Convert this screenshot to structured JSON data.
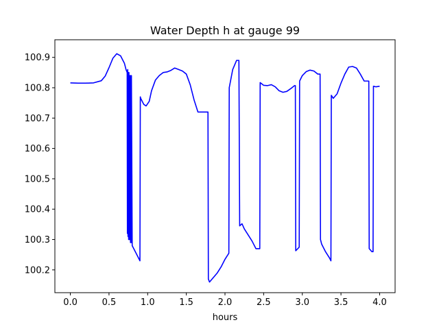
{
  "chart_data": {
    "type": "line",
    "title": "Water Depth h at gauge 99",
    "xlabel": "hours",
    "ylabel": "",
    "xlim": [
      -0.2,
      4.2
    ],
    "ylim": [
      100.125,
      100.958
    ],
    "grid": false,
    "x_ticks": [
      {
        "value": 0.0,
        "label": "0.0"
      },
      {
        "value": 0.5,
        "label": "0.5"
      },
      {
        "value": 1.0,
        "label": "1.0"
      },
      {
        "value": 1.5,
        "label": "1.5"
      },
      {
        "value": 2.0,
        "label": "2.0"
      },
      {
        "value": 2.5,
        "label": "2.5"
      },
      {
        "value": 3.0,
        "label": "3.0"
      },
      {
        "value": 3.5,
        "label": "3.5"
      },
      {
        "value": 4.0,
        "label": "4.0"
      }
    ],
    "y_ticks": [
      {
        "value": 100.2,
        "label": "100.2"
      },
      {
        "value": 100.3,
        "label": "100.3"
      },
      {
        "value": 100.4,
        "label": "100.4"
      },
      {
        "value": 100.5,
        "label": "100.5"
      },
      {
        "value": 100.6,
        "label": "100.6"
      },
      {
        "value": 100.7,
        "label": "100.7"
      },
      {
        "value": 100.8,
        "label": "100.8"
      },
      {
        "value": 100.9,
        "label": "100.9"
      }
    ],
    "series": [
      {
        "color": "#0000ff",
        "x": [
          0.0,
          0.1,
          0.2,
          0.3,
          0.4,
          0.45,
          0.5,
          0.55,
          0.6,
          0.65,
          0.7,
          0.72,
          0.735,
          0.738,
          0.742,
          0.746,
          0.75,
          0.754,
          0.758,
          0.762,
          0.766,
          0.77,
          0.774,
          0.778,
          0.782,
          0.786,
          0.79,
          0.8,
          0.85,
          0.9,
          0.905,
          0.91,
          0.95,
          0.98,
          1.02,
          1.05,
          1.1,
          1.15,
          1.2,
          1.25,
          1.3,
          1.35,
          1.4,
          1.45,
          1.5,
          1.55,
          1.6,
          1.65,
          1.7,
          1.75,
          1.78,
          1.785,
          1.8,
          1.85,
          1.9,
          1.95,
          2.0,
          2.05,
          2.055,
          2.1,
          2.15,
          2.18,
          2.19,
          2.22,
          2.25,
          2.3,
          2.35,
          2.4,
          2.45,
          2.455,
          2.5,
          2.55,
          2.6,
          2.65,
          2.7,
          2.75,
          2.8,
          2.85,
          2.9,
          2.91,
          2.915,
          2.96,
          2.965,
          3.0,
          3.05,
          3.1,
          3.15,
          3.2,
          3.23,
          3.235,
          3.25,
          3.3,
          3.35,
          3.37,
          3.375,
          3.4,
          3.45,
          3.5,
          3.55,
          3.6,
          3.65,
          3.7,
          3.75,
          3.8,
          3.85,
          3.86,
          3.865,
          3.9,
          3.915,
          3.92,
          3.95,
          4.0
        ],
        "y": [
          100.816,
          100.815,
          100.815,
          100.816,
          100.823,
          100.838,
          100.866,
          100.897,
          100.912,
          100.905,
          100.88,
          100.86,
          100.85,
          100.32,
          100.86,
          100.31,
          100.85,
          100.3,
          100.85,
          100.3,
          100.84,
          100.3,
          100.84,
          100.29,
          100.84,
          100.29,
          100.84,
          100.28,
          100.255,
          100.23,
          100.77,
          100.765,
          100.745,
          100.74,
          100.755,
          100.79,
          100.825,
          100.84,
          100.85,
          100.852,
          100.857,
          100.865,
          100.86,
          100.855,
          100.845,
          100.81,
          100.76,
          100.72,
          100.72,
          100.72,
          100.72,
          100.17,
          100.16,
          100.175,
          100.19,
          100.21,
          100.235,
          100.255,
          100.8,
          100.86,
          100.89,
          100.89,
          100.345,
          100.352,
          100.335,
          100.315,
          100.295,
          100.27,
          100.27,
          100.817,
          100.808,
          100.807,
          100.81,
          100.803,
          100.79,
          100.785,
          100.788,
          100.797,
          100.807,
          100.807,
          100.263,
          100.275,
          100.822,
          100.84,
          100.853,
          100.858,
          100.855,
          100.845,
          100.845,
          100.3,
          100.285,
          100.26,
          100.24,
          100.23,
          100.775,
          100.765,
          100.78,
          100.815,
          100.845,
          100.868,
          100.87,
          100.865,
          100.845,
          100.822,
          100.822,
          100.822,
          100.27,
          100.26,
          100.26,
          100.805,
          100.803,
          100.805
        ]
      }
    ]
  }
}
